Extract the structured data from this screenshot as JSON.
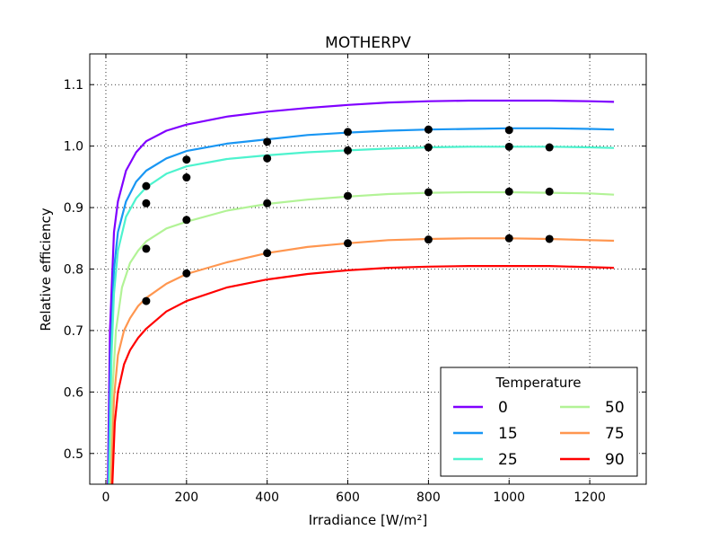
{
  "chart_data": {
    "type": "line",
    "title": "MOTHERPV",
    "xlabel": "Irradiance [W/m²]",
    "ylabel": "Relative efficiency",
    "xlim": [
      -40,
      1340
    ],
    "ylim": [
      0.45,
      1.15
    ],
    "xticks": [
      0,
      200,
      400,
      600,
      800,
      1000,
      1200
    ],
    "yticks": [
      0.5,
      0.6,
      0.7,
      0.8,
      0.9,
      1.0,
      1.1
    ],
    "grid": true,
    "legend": {
      "title": "Temperature",
      "position": "lower-right",
      "columns": 2
    },
    "series": [
      {
        "name": "0",
        "color": "#8000ff",
        "fit_x": [
          5,
          10,
          20,
          30,
          50,
          75,
          100,
          150,
          200,
          300,
          400,
          500,
          600,
          700,
          800,
          900,
          1000,
          1100,
          1200,
          1260
        ],
        "fit_y": [
          0.45,
          0.7,
          0.86,
          0.91,
          0.96,
          0.99,
          1.008,
          1.025,
          1.035,
          1.048,
          1.056,
          1.062,
          1.067,
          1.071,
          1.073,
          1.074,
          1.074,
          1.074,
          1.073,
          1.072
        ],
        "points": []
      },
      {
        "name": "15",
        "color": "#1996f3",
        "fit_x": [
          7,
          12,
          20,
          30,
          50,
          75,
          100,
          150,
          200,
          300,
          400,
          500,
          600,
          700,
          800,
          900,
          1000,
          1100,
          1200,
          1260
        ],
        "fit_y": [
          0.45,
          0.66,
          0.8,
          0.86,
          0.91,
          0.942,
          0.96,
          0.98,
          0.992,
          1.004,
          1.011,
          1.018,
          1.022,
          1.025,
          1.027,
          1.028,
          1.029,
          1.029,
          1.028,
          1.027
        ],
        "points": [
          [
            100,
            0.935
          ],
          [
            200,
            0.978
          ],
          [
            400,
            1.007
          ],
          [
            600,
            1.023
          ],
          [
            800,
            1.027
          ],
          [
            1000,
            1.026
          ]
        ]
      },
      {
        "name": "25",
        "color": "#4df3ce",
        "fit_x": [
          8,
          14,
          20,
          30,
          50,
          75,
          100,
          150,
          200,
          300,
          400,
          500,
          600,
          700,
          800,
          900,
          1000,
          1100,
          1200,
          1260
        ],
        "fit_y": [
          0.45,
          0.66,
          0.76,
          0.83,
          0.885,
          0.915,
          0.933,
          0.955,
          0.967,
          0.979,
          0.985,
          0.99,
          0.993,
          0.996,
          0.998,
          0.999,
          0.999,
          0.999,
          0.998,
          0.997
        ],
        "points": [
          [
            100,
            0.907
          ],
          [
            200,
            0.949
          ],
          [
            400,
            0.98
          ],
          [
            600,
            0.993
          ],
          [
            800,
            0.998
          ],
          [
            1000,
            0.999
          ],
          [
            1100,
            0.998
          ]
        ]
      },
      {
        "name": "50",
        "color": "#b2f396",
        "fit_x": [
          11,
          16,
          25,
          40,
          60,
          80,
          100,
          150,
          200,
          300,
          400,
          500,
          600,
          700,
          800,
          900,
          1000,
          1100,
          1200,
          1260
        ],
        "fit_y": [
          0.45,
          0.6,
          0.7,
          0.77,
          0.81,
          0.83,
          0.845,
          0.866,
          0.877,
          0.895,
          0.906,
          0.913,
          0.918,
          0.922,
          0.924,
          0.925,
          0.925,
          0.924,
          0.923,
          0.921
        ],
        "points": [
          [
            100,
            0.833
          ],
          [
            200,
            0.88
          ],
          [
            400,
            0.907
          ],
          [
            600,
            0.919
          ],
          [
            800,
            0.925
          ],
          [
            1000,
            0.926
          ],
          [
            1100,
            0.926
          ]
        ]
      },
      {
        "name": "75",
        "color": "#ff964f",
        "fit_x": [
          13,
          20,
          30,
          45,
          60,
          80,
          100,
          150,
          200,
          300,
          400,
          500,
          600,
          700,
          800,
          900,
          1000,
          1100,
          1200,
          1260
        ],
        "fit_y": [
          0.45,
          0.59,
          0.66,
          0.7,
          0.72,
          0.74,
          0.753,
          0.776,
          0.792,
          0.811,
          0.826,
          0.836,
          0.842,
          0.847,
          0.849,
          0.85,
          0.85,
          0.849,
          0.847,
          0.846
        ],
        "points": [
          [
            100,
            0.748
          ],
          [
            200,
            0.793
          ],
          [
            400,
            0.826
          ],
          [
            600,
            0.842
          ],
          [
            800,
            0.848
          ],
          [
            1000,
            0.85
          ],
          [
            1100,
            0.849
          ]
        ]
      },
      {
        "name": "90",
        "color": "#ff0000",
        "fit_x": [
          16,
          22,
          30,
          45,
          60,
          80,
          100,
          150,
          200,
          300,
          400,
          500,
          600,
          700,
          800,
          900,
          1000,
          1100,
          1200,
          1260
        ],
        "fit_y": [
          0.45,
          0.55,
          0.6,
          0.645,
          0.668,
          0.688,
          0.703,
          0.731,
          0.748,
          0.77,
          0.783,
          0.792,
          0.798,
          0.802,
          0.804,
          0.805,
          0.805,
          0.805,
          0.803,
          0.802
        ],
        "points": []
      }
    ]
  }
}
